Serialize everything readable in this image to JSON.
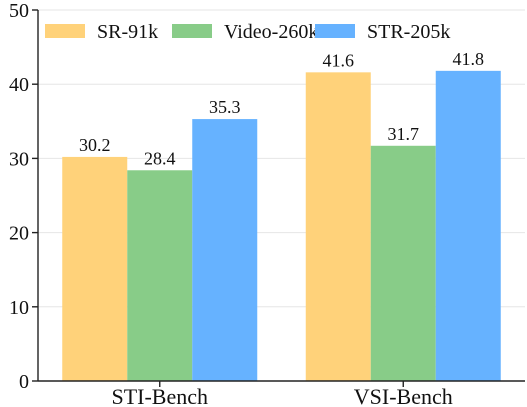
{
  "chart_data": {
    "type": "bar",
    "title": "",
    "xlabel": "",
    "ylabel": "",
    "categories": [
      "STI-Bench",
      "VSI-Bench"
    ],
    "series": [
      {
        "name": "SR-91k",
        "values": [
          30.2,
          41.6
        ],
        "color": "#ffd27a"
      },
      {
        "name": "Video-260k",
        "values": [
          28.4,
          31.7
        ],
        "color": "#88cc88"
      },
      {
        "name": "STR-205k",
        "values": [
          35.3,
          41.8
        ],
        "color": "#66b2ff"
      }
    ],
    "ylim": [
      0,
      50
    ],
    "yticks": [
      0,
      10,
      20,
      30,
      40,
      50
    ],
    "grid": true,
    "legend_position": "top"
  }
}
